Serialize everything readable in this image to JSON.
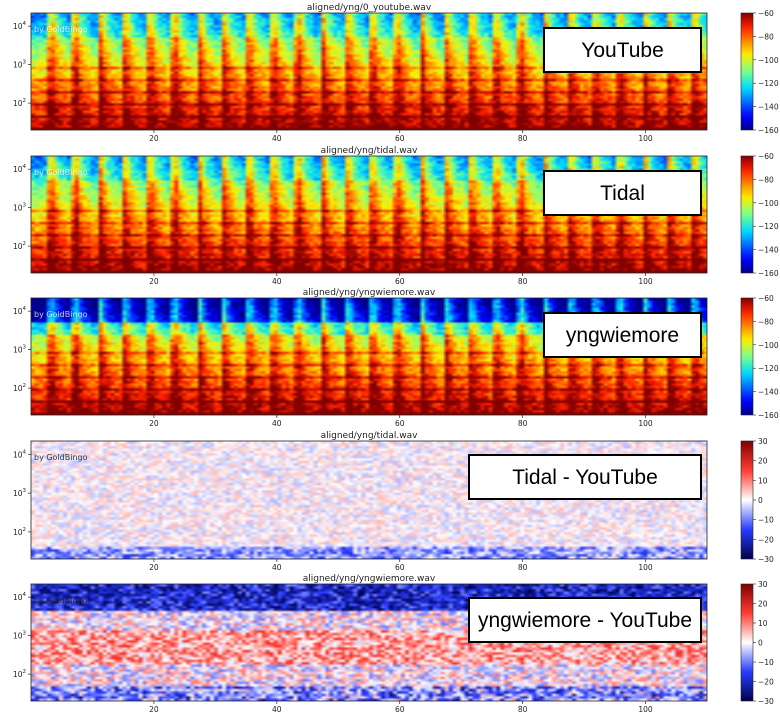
{
  "chart_data": [
    {
      "type": "heatmap",
      "title": "aligned/yng/0_youtube.wav",
      "label": "YouTube",
      "watermark": "by GoldBingo",
      "x_ticks": [
        20,
        40,
        60,
        80,
        100
      ],
      "xlim": [
        0,
        110
      ],
      "y_scale": "log",
      "y_ticks": [
        "10^2",
        "10^3",
        "10^4"
      ],
      "colorbar_ticks": [
        -60,
        -80,
        -100,
        -120,
        -140,
        -160
      ],
      "colorbar_range": [
        -160,
        -60
      ],
      "colormap": "jet",
      "y_range_hz": [
        20,
        22000
      ]
    },
    {
      "type": "heatmap",
      "title": "aligned/yng/tidal.wav",
      "label": "Tidal",
      "watermark": "by GoldBingo",
      "x_ticks": [
        20,
        40,
        60,
        80,
        100
      ],
      "xlim": [
        0,
        110
      ],
      "y_scale": "log",
      "y_ticks": [
        "10^2",
        "10^3",
        "10^4"
      ],
      "colorbar_ticks": [
        -60,
        -80,
        -100,
        -120,
        -140,
        -160
      ],
      "colorbar_range": [
        -160,
        -60
      ],
      "colormap": "jet",
      "y_range_hz": [
        20,
        22000
      ]
    },
    {
      "type": "heatmap",
      "title": "aligned/yng/yngwiemore.wav",
      "label": "yngwiemore",
      "watermark": "by GoldBingo",
      "x_ticks": [
        20,
        40,
        60,
        80,
        100
      ],
      "xlim": [
        0,
        110
      ],
      "y_scale": "log",
      "y_ticks": [
        "10^2",
        "10^3",
        "10^4"
      ],
      "colorbar_ticks": [
        -60,
        -80,
        -100,
        -120,
        -140,
        -160
      ],
      "colorbar_range": [
        -160,
        -60
      ],
      "colormap": "jet",
      "y_range_hz": [
        20,
        22000
      ]
    },
    {
      "type": "heatmap",
      "title": "aligned/yng/tidal.wav",
      "label": "Tidal - YouTube",
      "watermark": "by GoldBingo",
      "x_ticks": [
        20,
        40,
        60,
        80,
        100
      ],
      "xlim": [
        0,
        110
      ],
      "y_scale": "log",
      "y_ticks": [
        "10^2",
        "10^3",
        "10^4"
      ],
      "colorbar_ticks": [
        30,
        20,
        10,
        0,
        -10,
        -20,
        -30
      ],
      "colorbar_range": [
        -30,
        30
      ],
      "colormap": "seismic",
      "y_range_hz": [
        20,
        22000
      ]
    },
    {
      "type": "heatmap",
      "title": "aligned/yng/yngwiemore.wav",
      "label": "yngwiemore - YouTube",
      "watermark": "by GoldBingo",
      "x_ticks": [
        20,
        40,
        60,
        80,
        100
      ],
      "xlim": [
        0,
        110
      ],
      "y_scale": "log",
      "y_ticks": [
        "10^2",
        "10^3",
        "10^4"
      ],
      "colorbar_ticks": [
        30,
        20,
        10,
        0,
        -10,
        -20,
        -30
      ],
      "colorbar_range": [
        -30,
        30
      ],
      "colormap": "seismic",
      "y_range_hz": [
        20,
        22000
      ]
    }
  ]
}
